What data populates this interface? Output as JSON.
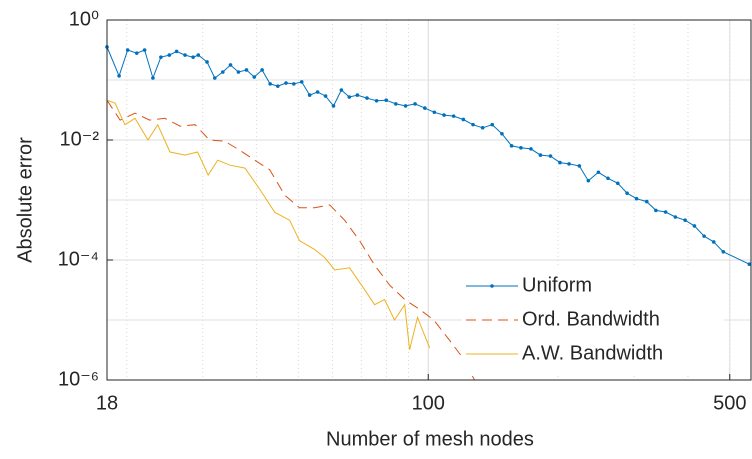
{
  "chart_data": {
    "type": "line",
    "xlabel": "Number of mesh nodes",
    "ylabel": "Absolute error",
    "xscale": "log",
    "yscale": "log",
    "grid": true,
    "legend": "southeast",
    "xlim": [
      18,
      560
    ],
    "ylim": [
      1e-06,
      1
    ],
    "xticks": [
      18,
      100,
      500
    ],
    "yticks": [
      {
        "value": 1e-06,
        "label": "10⁻⁶"
      },
      {
        "value": 0.0001,
        "label": "10⁻⁴"
      },
      {
        "value": 0.01,
        "label": "10⁻²"
      },
      {
        "value": 1,
        "label": "10⁰"
      }
    ],
    "series": [
      {
        "name": "Uniform",
        "color": "#0072BD",
        "style": "solid-marker",
        "x": [
          18,
          19.2,
          20.1,
          21.1,
          22.0,
          23.0,
          24.0,
          25.1,
          26.1,
          27.3,
          28.5,
          29.3,
          30.7,
          32,
          33.4,
          34.8,
          36.3,
          37.9,
          39.5,
          41.2,
          43,
          44.8,
          46.8,
          48.8,
          50.9,
          53.1,
          55.4,
          57.8,
          60.3,
          62.9,
          65.6,
          68.5,
          72.1,
          75.9,
          79.9,
          84.1,
          88.6,
          93.2,
          98.2,
          103.3,
          108.8,
          114.5,
          120.6,
          127,
          133.7,
          140.7,
          148.2,
          156,
          164,
          173,
          182,
          192,
          202,
          212,
          224,
          235,
          248,
          261,
          275,
          289,
          304,
          321,
          337,
          355,
          374,
          394,
          414,
          436,
          459,
          483,
          555
        ],
        "values": [
          0.355,
          0.117,
          0.316,
          0.28,
          0.316,
          0.108,
          0.24,
          0.26,
          0.3,
          0.26,
          0.24,
          0.26,
          0.2,
          0.108,
          0.136,
          0.178,
          0.136,
          0.147,
          0.112,
          0.147,
          0.086,
          0.079,
          0.089,
          0.086,
          0.093,
          0.056,
          0.063,
          0.054,
          0.037,
          0.068,
          0.052,
          0.056,
          0.05,
          0.045,
          0.046,
          0.04,
          0.037,
          0.04,
          0.034,
          0.029,
          0.026,
          0.025,
          0.022,
          0.018,
          0.016,
          0.018,
          0.0127,
          0.008,
          0.0074,
          0.0071,
          0.0056,
          0.0054,
          0.0042,
          0.004,
          0.0037,
          0.0021,
          0.0029,
          0.0023,
          0.0019,
          0.0013,
          0.00105,
          0.00094,
          0.00067,
          0.00063,
          0.00052,
          0.00046,
          0.00037,
          0.00025,
          0.0002,
          0.000137,
          8.5e-05
        ]
      },
      {
        "name": "Ord. Bandwidth",
        "color": "#D95319",
        "style": "dashed",
        "x": [
          18,
          19.3,
          20.9,
          22.6,
          24.5,
          26.6,
          28.8,
          31.1,
          33.7,
          36.5,
          39.6,
          42.9,
          46.5,
          50.3,
          54.5,
          59.1,
          64,
          69.3,
          75.1,
          81.4,
          88.2,
          95.5,
          103,
          112,
          121,
          128
        ],
        "values": [
          0.046,
          0.0215,
          0.028,
          0.0215,
          0.023,
          0.017,
          0.018,
          0.01,
          0.0096,
          0.0068,
          0.0046,
          0.0032,
          0.0012,
          0.00074,
          0.00074,
          0.00083,
          0.00046,
          0.00021,
          8.2e-05,
          3.8e-05,
          2.2e-05,
          1.5e-05,
          1e-05,
          4.6e-06,
          2.2e-06,
          1e-06
        ]
      },
      {
        "name": "A.W. Bandwidth",
        "color": "#EDB120",
        "style": "solid",
        "x": [
          18,
          18.8,
          19.8,
          20.9,
          22.4,
          23.6,
          25.2,
          27.3,
          29.2,
          30.9,
          32.5,
          34.7,
          37.6,
          40.7,
          44.1,
          47.7,
          50.3,
          54.5,
          57.5,
          60.7,
          65.7,
          71.2,
          75.1,
          79.2,
          83.5,
          88.2,
          90.5,
          94.4,
          100.8
        ],
        "values": [
          0.046,
          0.041,
          0.018,
          0.023,
          0.01,
          0.018,
          0.0063,
          0.0056,
          0.0063,
          0.0026,
          0.0046,
          0.0038,
          0.0034,
          0.0015,
          0.00062,
          0.00046,
          0.00021,
          0.00015,
          0.00011,
          6.8e-05,
          7.4e-05,
          3.2e-05,
          1.8e-05,
          2.2e-05,
          1e-05,
          1.8e-05,
          3.2e-06,
          1.1e-05,
          3.4e-06
        ]
      }
    ]
  }
}
